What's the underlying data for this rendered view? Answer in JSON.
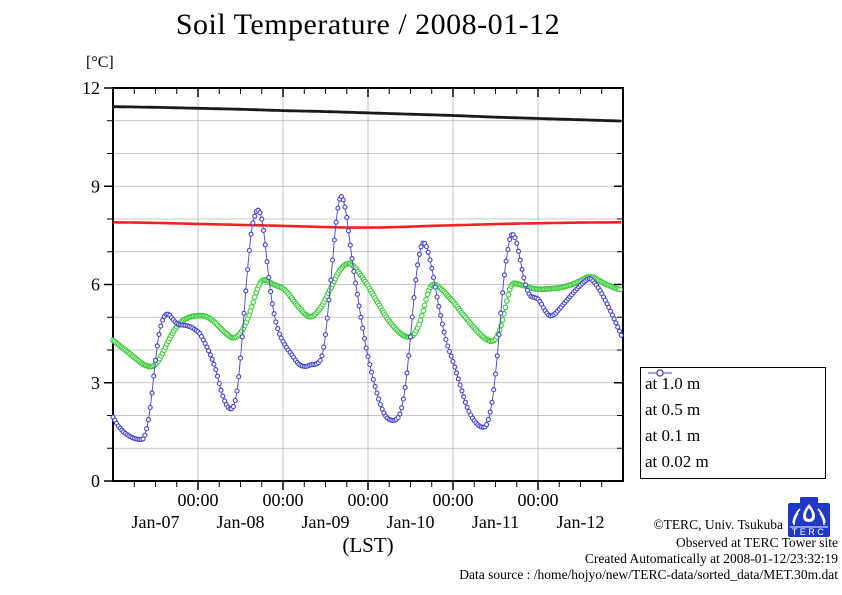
{
  "chart_data": {
    "type": "line",
    "title": "Soil Temperature / 2008-01-12",
    "ylabel": "[°C]",
    "xlabel": "(LST)",
    "x_unit_note": "hours since Jan-07 00:00 LST",
    "xlim": [
      0,
      144
    ],
    "ylim": [
      0,
      12
    ],
    "yticks_major": [
      0,
      3,
      6,
      9,
      12
    ],
    "ytick_minor_step": 1,
    "xticks_major_hours": [
      24,
      48,
      72,
      96,
      120
    ],
    "xtick_major_label": "00:00",
    "xtick_minor_step_hours": 6,
    "day_labels": [
      "Jan-07",
      "Jan-08",
      "Jan-09",
      "Jan-10",
      "Jan-11",
      "Jan-12"
    ],
    "day_label_hours": [
      12,
      36,
      60,
      84,
      108,
      132
    ],
    "grid": {
      "vertical_at_major_ticks": true,
      "horizontal_every_deg": 1,
      "color": "#b4b4b4"
    },
    "frame_color": "#000000",
    "series": [
      {
        "name": "at 1.0 m",
        "color": "#1a1a1a",
        "line_width": 2.8,
        "marker": "none",
        "marker_step_h": 0.5,
        "points": [
          [
            0,
            11.43
          ],
          [
            12,
            11.41
          ],
          [
            24,
            11.38
          ],
          [
            36,
            11.35
          ],
          [
            48,
            11.31
          ],
          [
            60,
            11.28
          ],
          [
            72,
            11.24
          ],
          [
            84,
            11.2
          ],
          [
            96,
            11.16
          ],
          [
            108,
            11.11
          ],
          [
            120,
            11.07
          ],
          [
            132,
            11.03
          ],
          [
            143.5,
            10.99
          ]
        ]
      },
      {
        "name": "at 0.5 m",
        "color": "#f52020",
        "line_width": 2.6,
        "marker": "none",
        "marker_step_h": 0.5,
        "points": [
          [
            0,
            7.9
          ],
          [
            12,
            7.88
          ],
          [
            24,
            7.85
          ],
          [
            36,
            7.82
          ],
          [
            48,
            7.79
          ],
          [
            58,
            7.76
          ],
          [
            66,
            7.74
          ],
          [
            74,
            7.74
          ],
          [
            82,
            7.76
          ],
          [
            90,
            7.79
          ],
          [
            100,
            7.82
          ],
          [
            110,
            7.85
          ],
          [
            120,
            7.87
          ],
          [
            132,
            7.89
          ],
          [
            143.5,
            7.9
          ]
        ]
      },
      {
        "name": "at 0.1 m",
        "color": "#3ccc3c",
        "line_width": 1.1,
        "marker": "circle",
        "marker_r": 2.3,
        "marker_step_h": 0.4,
        "points": [
          [
            0,
            4.3
          ],
          [
            2,
            4.12
          ],
          [
            4,
            3.95
          ],
          [
            6,
            3.78
          ],
          [
            8,
            3.6
          ],
          [
            9.5,
            3.52
          ],
          [
            11,
            3.5
          ],
          [
            12.5,
            3.62
          ],
          [
            14,
            3.9
          ],
          [
            15.5,
            4.25
          ],
          [
            17,
            4.55
          ],
          [
            18.5,
            4.78
          ],
          [
            20,
            4.92
          ],
          [
            21.5,
            5.0
          ],
          [
            23,
            5.04
          ],
          [
            24.5,
            5.05
          ],
          [
            26,
            5.03
          ],
          [
            27.5,
            4.95
          ],
          [
            29,
            4.82
          ],
          [
            30.5,
            4.65
          ],
          [
            32,
            4.5
          ],
          [
            33.5,
            4.38
          ],
          [
            34.8,
            4.4
          ],
          [
            36.2,
            4.55
          ],
          [
            37.6,
            4.85
          ],
          [
            39,
            5.25
          ],
          [
            40.4,
            5.75
          ],
          [
            41.6,
            6.05
          ],
          [
            42.6,
            6.14
          ],
          [
            43.8,
            6.1
          ],
          [
            45,
            6.02
          ],
          [
            46.5,
            5.95
          ],
          [
            48,
            5.88
          ],
          [
            49.5,
            5.72
          ],
          [
            51,
            5.5
          ],
          [
            52.5,
            5.3
          ],
          [
            54,
            5.12
          ],
          [
            55.3,
            5.02
          ],
          [
            56.6,
            5.05
          ],
          [
            58,
            5.2
          ],
          [
            59.5,
            5.45
          ],
          [
            61,
            5.78
          ],
          [
            62.5,
            6.12
          ],
          [
            64,
            6.42
          ],
          [
            65.5,
            6.6
          ],
          [
            66.8,
            6.64
          ],
          [
            68,
            6.55
          ],
          [
            69.5,
            6.35
          ],
          [
            71,
            6.12
          ],
          [
            72,
            5.95
          ],
          [
            73.5,
            5.68
          ],
          [
            75,
            5.4
          ],
          [
            76.5,
            5.12
          ],
          [
            78,
            4.88
          ],
          [
            79.5,
            4.68
          ],
          [
            81,
            4.52
          ],
          [
            82.5,
            4.42
          ],
          [
            83.8,
            4.4
          ],
          [
            85,
            4.48
          ],
          [
            86.3,
            4.75
          ],
          [
            87.6,
            5.2
          ],
          [
            88.8,
            5.7
          ],
          [
            89.8,
            5.95
          ],
          [
            90.8,
            6.0
          ],
          [
            92,
            5.92
          ],
          [
            93.5,
            5.78
          ],
          [
            95,
            5.6
          ],
          [
            96.5,
            5.42
          ],
          [
            98,
            5.2
          ],
          [
            99.5,
            5.0
          ],
          [
            101,
            4.8
          ],
          [
            102.5,
            4.62
          ],
          [
            104,
            4.45
          ],
          [
            105.5,
            4.32
          ],
          [
            107,
            4.27
          ],
          [
            108.3,
            4.38
          ],
          [
            109.6,
            4.75
          ],
          [
            110.9,
            5.35
          ],
          [
            112,
            5.85
          ],
          [
            113,
            6.03
          ],
          [
            114.2,
            6.02
          ],
          [
            115.5,
            5.98
          ],
          [
            117,
            5.93
          ],
          [
            118.5,
            5.88
          ],
          [
            120,
            5.86
          ],
          [
            122,
            5.86
          ],
          [
            124,
            5.88
          ],
          [
            126,
            5.9
          ],
          [
            128,
            5.95
          ],
          [
            130,
            6.02
          ],
          [
            132,
            6.12
          ],
          [
            133.8,
            6.22
          ],
          [
            135,
            6.24
          ],
          [
            136.3,
            6.18
          ],
          [
            137.6,
            6.1
          ],
          [
            139,
            6.02
          ],
          [
            140.5,
            5.95
          ],
          [
            142,
            5.88
          ],
          [
            143.5,
            5.84
          ]
        ]
      },
      {
        "name": "at 0.02 m",
        "color": "#4343cf",
        "line_width": 0.9,
        "marker": "circle",
        "marker_r": 2.0,
        "marker_step_h": 0.5,
        "points": [
          [
            0,
            1.95
          ],
          [
            1.5,
            1.68
          ],
          [
            3,
            1.5
          ],
          [
            4.5,
            1.38
          ],
          [
            6,
            1.3
          ],
          [
            7.5,
            1.27
          ],
          [
            8.7,
            1.32
          ],
          [
            9.8,
            1.75
          ],
          [
            10.8,
            2.5
          ],
          [
            11.8,
            3.5
          ],
          [
            12.8,
            4.35
          ],
          [
            13.8,
            4.85
          ],
          [
            14.8,
            5.07
          ],
          [
            15.8,
            5.08
          ],
          [
            16.8,
            4.95
          ],
          [
            17.8,
            4.83
          ],
          [
            19,
            4.77
          ],
          [
            20.5,
            4.75
          ],
          [
            22,
            4.7
          ],
          [
            23.2,
            4.62
          ],
          [
            24.5,
            4.5
          ],
          [
            26,
            4.2
          ],
          [
            27.5,
            3.85
          ],
          [
            29,
            3.4
          ],
          [
            30.3,
            2.85
          ],
          [
            31.3,
            2.5
          ],
          [
            32.3,
            2.28
          ],
          [
            33.3,
            2.2
          ],
          [
            34.2,
            2.33
          ],
          [
            35.2,
            2.9
          ],
          [
            36.2,
            4.0
          ],
          [
            37.2,
            5.4
          ],
          [
            38.2,
            6.7
          ],
          [
            39.2,
            7.7
          ],
          [
            40.2,
            8.15
          ],
          [
            41,
            8.27
          ],
          [
            41.9,
            8.05
          ],
          [
            42.8,
            7.4
          ],
          [
            43.8,
            6.4
          ],
          [
            44.8,
            5.55
          ],
          [
            45.8,
            4.95
          ],
          [
            46.8,
            4.55
          ],
          [
            47.8,
            4.3
          ],
          [
            49,
            4.08
          ],
          [
            50.5,
            3.85
          ],
          [
            52,
            3.62
          ],
          [
            53.2,
            3.52
          ],
          [
            54.5,
            3.5
          ],
          [
            56,
            3.55
          ],
          [
            57.5,
            3.58
          ],
          [
            58.8,
            3.75
          ],
          [
            59.8,
            4.3
          ],
          [
            60.8,
            5.3
          ],
          [
            61.8,
            6.5
          ],
          [
            62.8,
            7.7
          ],
          [
            63.6,
            8.4
          ],
          [
            64.3,
            8.68
          ],
          [
            65.1,
            8.55
          ],
          [
            66,
            8.05
          ],
          [
            67,
            7.2
          ],
          [
            68,
            6.4
          ],
          [
            69,
            5.7
          ],
          [
            70,
            5.0
          ],
          [
            71,
            4.35
          ],
          [
            72,
            3.8
          ],
          [
            73.5,
            3.1
          ],
          [
            75,
            2.5
          ],
          [
            76.3,
            2.12
          ],
          [
            77.5,
            1.92
          ],
          [
            78.8,
            1.85
          ],
          [
            80,
            1.88
          ],
          [
            81,
            2.05
          ],
          [
            82,
            2.5
          ],
          [
            83,
            3.3
          ],
          [
            84,
            4.4
          ],
          [
            85,
            5.6
          ],
          [
            86,
            6.6
          ],
          [
            87,
            7.15
          ],
          [
            87.8,
            7.27
          ],
          [
            88.7,
            7.1
          ],
          [
            89.7,
            6.65
          ],
          [
            90.7,
            6.1
          ],
          [
            91.7,
            5.5
          ],
          [
            92.7,
            4.95
          ],
          [
            93.7,
            4.45
          ],
          [
            94.7,
            4.05
          ],
          [
            95.7,
            3.75
          ],
          [
            97,
            3.3
          ],
          [
            98.5,
            2.75
          ],
          [
            100,
            2.25
          ],
          [
            101.5,
            1.92
          ],
          [
            103,
            1.72
          ],
          [
            104.3,
            1.64
          ],
          [
            105.4,
            1.7
          ],
          [
            106.4,
            2.05
          ],
          [
            107.4,
            2.7
          ],
          [
            108.4,
            3.7
          ],
          [
            109.4,
            5.0
          ],
          [
            110.4,
            6.2
          ],
          [
            111.4,
            7.0
          ],
          [
            112.2,
            7.45
          ],
          [
            113,
            7.52
          ],
          [
            113.9,
            7.3
          ],
          [
            114.9,
            6.8
          ],
          [
            115.9,
            6.25
          ],
          [
            116.9,
            5.85
          ],
          [
            117.9,
            5.65
          ],
          [
            119,
            5.6
          ],
          [
            120,
            5.55
          ],
          [
            121,
            5.4
          ],
          [
            122,
            5.2
          ],
          [
            123.2,
            5.05
          ],
          [
            124.5,
            5.08
          ],
          [
            126,
            5.25
          ],
          [
            128,
            5.5
          ],
          [
            130,
            5.75
          ],
          [
            132,
            5.98
          ],
          [
            133.5,
            6.12
          ],
          [
            134.7,
            6.18
          ],
          [
            136,
            6.05
          ],
          [
            137.3,
            5.85
          ],
          [
            138.6,
            5.6
          ],
          [
            140,
            5.3
          ],
          [
            141.5,
            4.95
          ],
          [
            142.7,
            4.65
          ],
          [
            143.5,
            4.45
          ]
        ]
      }
    ]
  },
  "legend": {
    "items": [
      {
        "label": "at 1.0 m",
        "color": "#1a1a1a"
      },
      {
        "label": "at 0.5 m",
        "color": "#f52020"
      },
      {
        "label": "at 0.1 m",
        "color": "#3ccc3c"
      },
      {
        "label": "at 0.02 m",
        "color": "#4343cf"
      }
    ]
  },
  "credits": {
    "lines": [
      "©TERC, Univ. Tsukuba",
      "Observed at TERC Tower site",
      "Created Automatically at 2008-01-12/23:32:19",
      "Data source : /home/hojyo/new/TERC-data/sorted_data/MET.30m.dat"
    ],
    "logo_text": "TERC",
    "logo_color": "#2038c8"
  }
}
